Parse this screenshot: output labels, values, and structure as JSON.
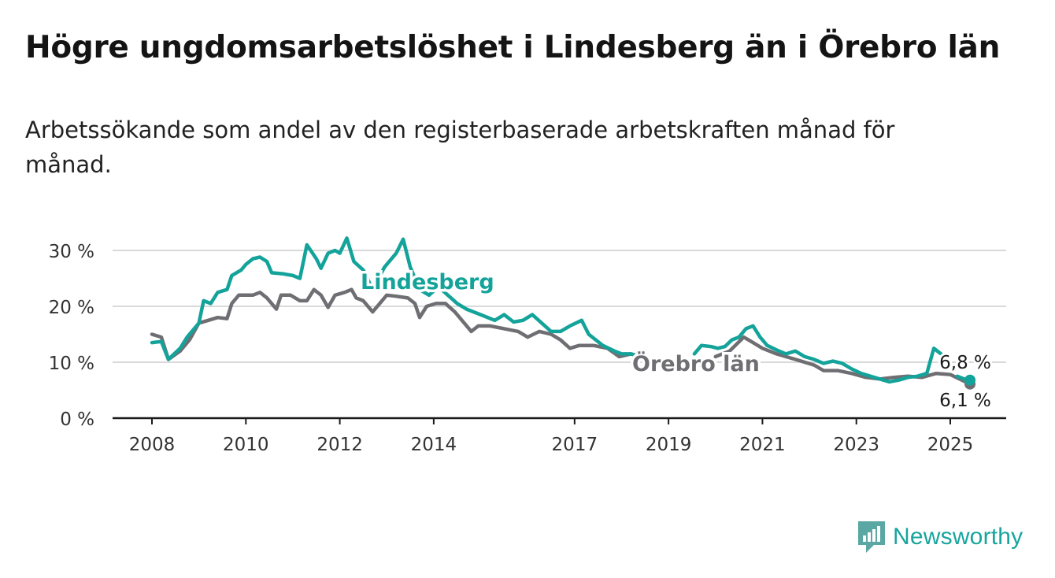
{
  "header": {
    "title": "Högre ungdomsarbetslöshet i Lindesberg än i Örebro län",
    "subtitle": "Arbetssökande som andel av den registerbaserade arbetskraften månad för månad."
  },
  "brand": {
    "name": "Newsworthy",
    "icon": "newsworthy-logo-icon",
    "color": "#17a59e"
  },
  "chart_data": {
    "type": "line",
    "title": "Högre ungdomsarbetslöshet i Lindesberg än i Örebro län",
    "subtitle": "Arbetssökande som andel av den registerbaserade arbetskraften månad för månad.",
    "xlabel": "",
    "ylabel": "",
    "x_ticks": [
      "2008",
      "2010",
      "2012",
      "2014",
      "2017",
      "2019",
      "2021",
      "2023",
      "2025"
    ],
    "x_tick_values": [
      2008,
      2010,
      2012,
      2014,
      2017,
      2019,
      2021,
      2023,
      2025
    ],
    "y_ticks": [
      "0 %",
      "10 %",
      "20 %",
      "30 %"
    ],
    "y_tick_values": [
      0,
      10,
      20,
      30
    ],
    "ylim": [
      0,
      30
    ],
    "grid": true,
    "legend": "direct labels on lines",
    "series": [
      {
        "name": "Lindesberg",
        "color": "#14a39a",
        "end_label": "6,8 %",
        "points": [
          [
            2008.0,
            13.5
          ],
          [
            2008.2,
            13.7
          ],
          [
            2008.35,
            10.5
          ],
          [
            2008.6,
            12.5
          ],
          [
            2008.75,
            14.5
          ],
          [
            2009.0,
            17.0
          ],
          [
            2009.1,
            21.0
          ],
          [
            2009.25,
            20.5
          ],
          [
            2009.4,
            22.5
          ],
          [
            2009.6,
            23.0
          ],
          [
            2009.7,
            25.5
          ],
          [
            2009.9,
            26.5
          ],
          [
            2010.0,
            27.5
          ],
          [
            2010.15,
            28.5
          ],
          [
            2010.3,
            28.8
          ],
          [
            2010.45,
            28.0
          ],
          [
            2010.55,
            26.0
          ],
          [
            2010.8,
            25.8
          ],
          [
            2011.0,
            25.5
          ],
          [
            2011.15,
            25.0
          ],
          [
            2011.3,
            31.0
          ],
          [
            2011.5,
            28.5
          ],
          [
            2011.6,
            26.8
          ],
          [
            2011.75,
            29.5
          ],
          [
            2011.9,
            30.0
          ],
          [
            2012.0,
            29.5
          ],
          [
            2012.15,
            32.2
          ],
          [
            2012.3,
            28.0
          ],
          [
            2012.5,
            26.5
          ],
          [
            2012.7,
            23.0
          ],
          [
            2012.95,
            27.0
          ],
          [
            2013.2,
            29.5
          ],
          [
            2013.35,
            32.0
          ],
          [
            2013.5,
            27.0
          ],
          [
            2013.7,
            23.0
          ],
          [
            2013.9,
            22.0
          ],
          [
            2014.1,
            23.5
          ],
          [
            2014.3,
            22.0
          ],
          [
            2014.5,
            20.5
          ],
          [
            2014.7,
            19.5
          ],
          [
            2015.0,
            18.5
          ],
          [
            2015.3,
            17.5
          ],
          [
            2015.5,
            18.5
          ],
          [
            2015.7,
            17.2
          ],
          [
            2015.9,
            17.5
          ],
          [
            2016.1,
            18.5
          ],
          [
            2016.3,
            17.0
          ],
          [
            2016.5,
            15.5
          ],
          [
            2016.7,
            15.5
          ],
          [
            2016.9,
            16.5
          ],
          [
            2017.15,
            17.5
          ],
          [
            2017.3,
            15.0
          ],
          [
            2017.6,
            13.0
          ],
          [
            2017.85,
            12.0
          ],
          [
            2018.0,
            11.5
          ],
          [
            2018.2,
            11.5
          ],
          [
            2018.4,
            11.0
          ],
          [
            2018.6,
            10.5
          ],
          [
            2018.75,
            10.2
          ]
        ],
        "points_segment_2": [
          [
            2019.55,
            11.5
          ],
          [
            2019.7,
            13.0
          ],
          [
            2019.9,
            12.8
          ],
          [
            2020.05,
            12.5
          ],
          [
            2020.2,
            12.8
          ],
          [
            2020.35,
            14.0
          ],
          [
            2020.5,
            14.5
          ],
          [
            2020.65,
            16.0
          ],
          [
            2020.8,
            16.5
          ],
          [
            2020.95,
            14.5
          ],
          [
            2021.1,
            13.0
          ],
          [
            2021.3,
            12.2
          ],
          [
            2021.5,
            11.5
          ],
          [
            2021.7,
            12.0
          ],
          [
            2021.9,
            11.0
          ],
          [
            2022.1,
            10.5
          ],
          [
            2022.3,
            9.8
          ],
          [
            2022.5,
            10.2
          ],
          [
            2022.7,
            9.8
          ],
          [
            2022.9,
            8.8
          ],
          [
            2023.1,
            8.0
          ],
          [
            2023.3,
            7.5
          ],
          [
            2023.5,
            7.0
          ],
          [
            2023.7,
            6.5
          ],
          [
            2023.9,
            6.8
          ],
          [
            2024.1,
            7.3
          ],
          [
            2024.3,
            7.5
          ],
          [
            2024.5,
            8.0
          ],
          [
            2024.65,
            12.5
          ],
          [
            2024.8,
            11.5
          ],
          [
            2024.95,
            10.5
          ]
        ],
        "points_segment_3": [
          [
            2025.15,
            7.5
          ],
          [
            2025.3,
            7.0
          ],
          [
            2025.42,
            6.8
          ]
        ]
      },
      {
        "name": "Örebro län",
        "color": "#6f6e73",
        "end_label": "6,1 %",
        "points": [
          [
            2008.0,
            15.0
          ],
          [
            2008.2,
            14.5
          ],
          [
            2008.35,
            10.5
          ],
          [
            2008.6,
            12.0
          ],
          [
            2008.8,
            14.0
          ],
          [
            2009.0,
            17.0
          ],
          [
            2009.2,
            17.5
          ],
          [
            2009.4,
            18.0
          ],
          [
            2009.6,
            17.8
          ],
          [
            2009.7,
            20.5
          ],
          [
            2009.85,
            22.0
          ],
          [
            2010.0,
            22.0
          ],
          [
            2010.15,
            22.0
          ],
          [
            2010.3,
            22.5
          ],
          [
            2010.45,
            21.5
          ],
          [
            2010.65,
            19.5
          ],
          [
            2010.75,
            22.0
          ],
          [
            2010.95,
            22.0
          ],
          [
            2011.15,
            21.0
          ],
          [
            2011.3,
            21.0
          ],
          [
            2011.45,
            23.0
          ],
          [
            2011.6,
            22.0
          ],
          [
            2011.75,
            19.8
          ],
          [
            2011.9,
            22.0
          ],
          [
            2012.1,
            22.5
          ],
          [
            2012.25,
            23.0
          ],
          [
            2012.35,
            21.5
          ],
          [
            2012.5,
            21.0
          ],
          [
            2012.7,
            19.0
          ],
          [
            2012.85,
            20.5
          ],
          [
            2013.0,
            22.0
          ],
          [
            2013.2,
            21.8
          ],
          [
            2013.45,
            21.5
          ],
          [
            2013.6,
            20.5
          ],
          [
            2013.7,
            18.0
          ],
          [
            2013.85,
            20.0
          ],
          [
            2014.05,
            20.5
          ],
          [
            2014.25,
            20.5
          ],
          [
            2014.45,
            19.0
          ],
          [
            2014.65,
            17.0
          ],
          [
            2014.8,
            15.5
          ],
          [
            2014.95,
            16.5
          ],
          [
            2015.2,
            16.5
          ],
          [
            2015.5,
            16.0
          ],
          [
            2015.8,
            15.5
          ],
          [
            2016.0,
            14.5
          ],
          [
            2016.25,
            15.5
          ],
          [
            2016.5,
            15.0
          ],
          [
            2016.7,
            14.0
          ],
          [
            2016.9,
            12.5
          ],
          [
            2017.1,
            13.0
          ],
          [
            2017.4,
            13.0
          ],
          [
            2017.7,
            12.5
          ],
          [
            2017.95,
            11.0
          ],
          [
            2018.2,
            11.5
          ],
          [
            2018.5,
            10.8
          ],
          [
            2018.7,
            10.0
          ]
        ],
        "points_segment_2": [
          [
            2020.0,
            11.0
          ],
          [
            2020.3,
            12.0
          ],
          [
            2020.6,
            14.5
          ],
          [
            2020.8,
            13.5
          ],
          [
            2021.0,
            12.5
          ],
          [
            2021.3,
            11.5
          ],
          [
            2021.5,
            11.0
          ],
          [
            2021.7,
            10.5
          ],
          [
            2021.9,
            10.0
          ],
          [
            2022.1,
            9.5
          ],
          [
            2022.3,
            8.5
          ],
          [
            2022.6,
            8.5
          ],
          [
            2022.9,
            8.0
          ],
          [
            2023.2,
            7.3
          ],
          [
            2023.5,
            7.0
          ],
          [
            2023.8,
            7.3
          ],
          [
            2024.1,
            7.5
          ],
          [
            2024.4,
            7.3
          ],
          [
            2024.7,
            8.0
          ],
          [
            2025.0,
            7.8
          ],
          [
            2025.2,
            7.0
          ],
          [
            2025.42,
            6.1
          ]
        ]
      }
    ],
    "annotations": [
      {
        "text": "Lindesberg",
        "series": "Lindesberg",
        "x": 2013.45,
        "y": 24.5
      },
      {
        "text": "Örebro län",
        "series": "Örebro län",
        "x": 2019.8,
        "y": 9.5
      }
    ]
  }
}
